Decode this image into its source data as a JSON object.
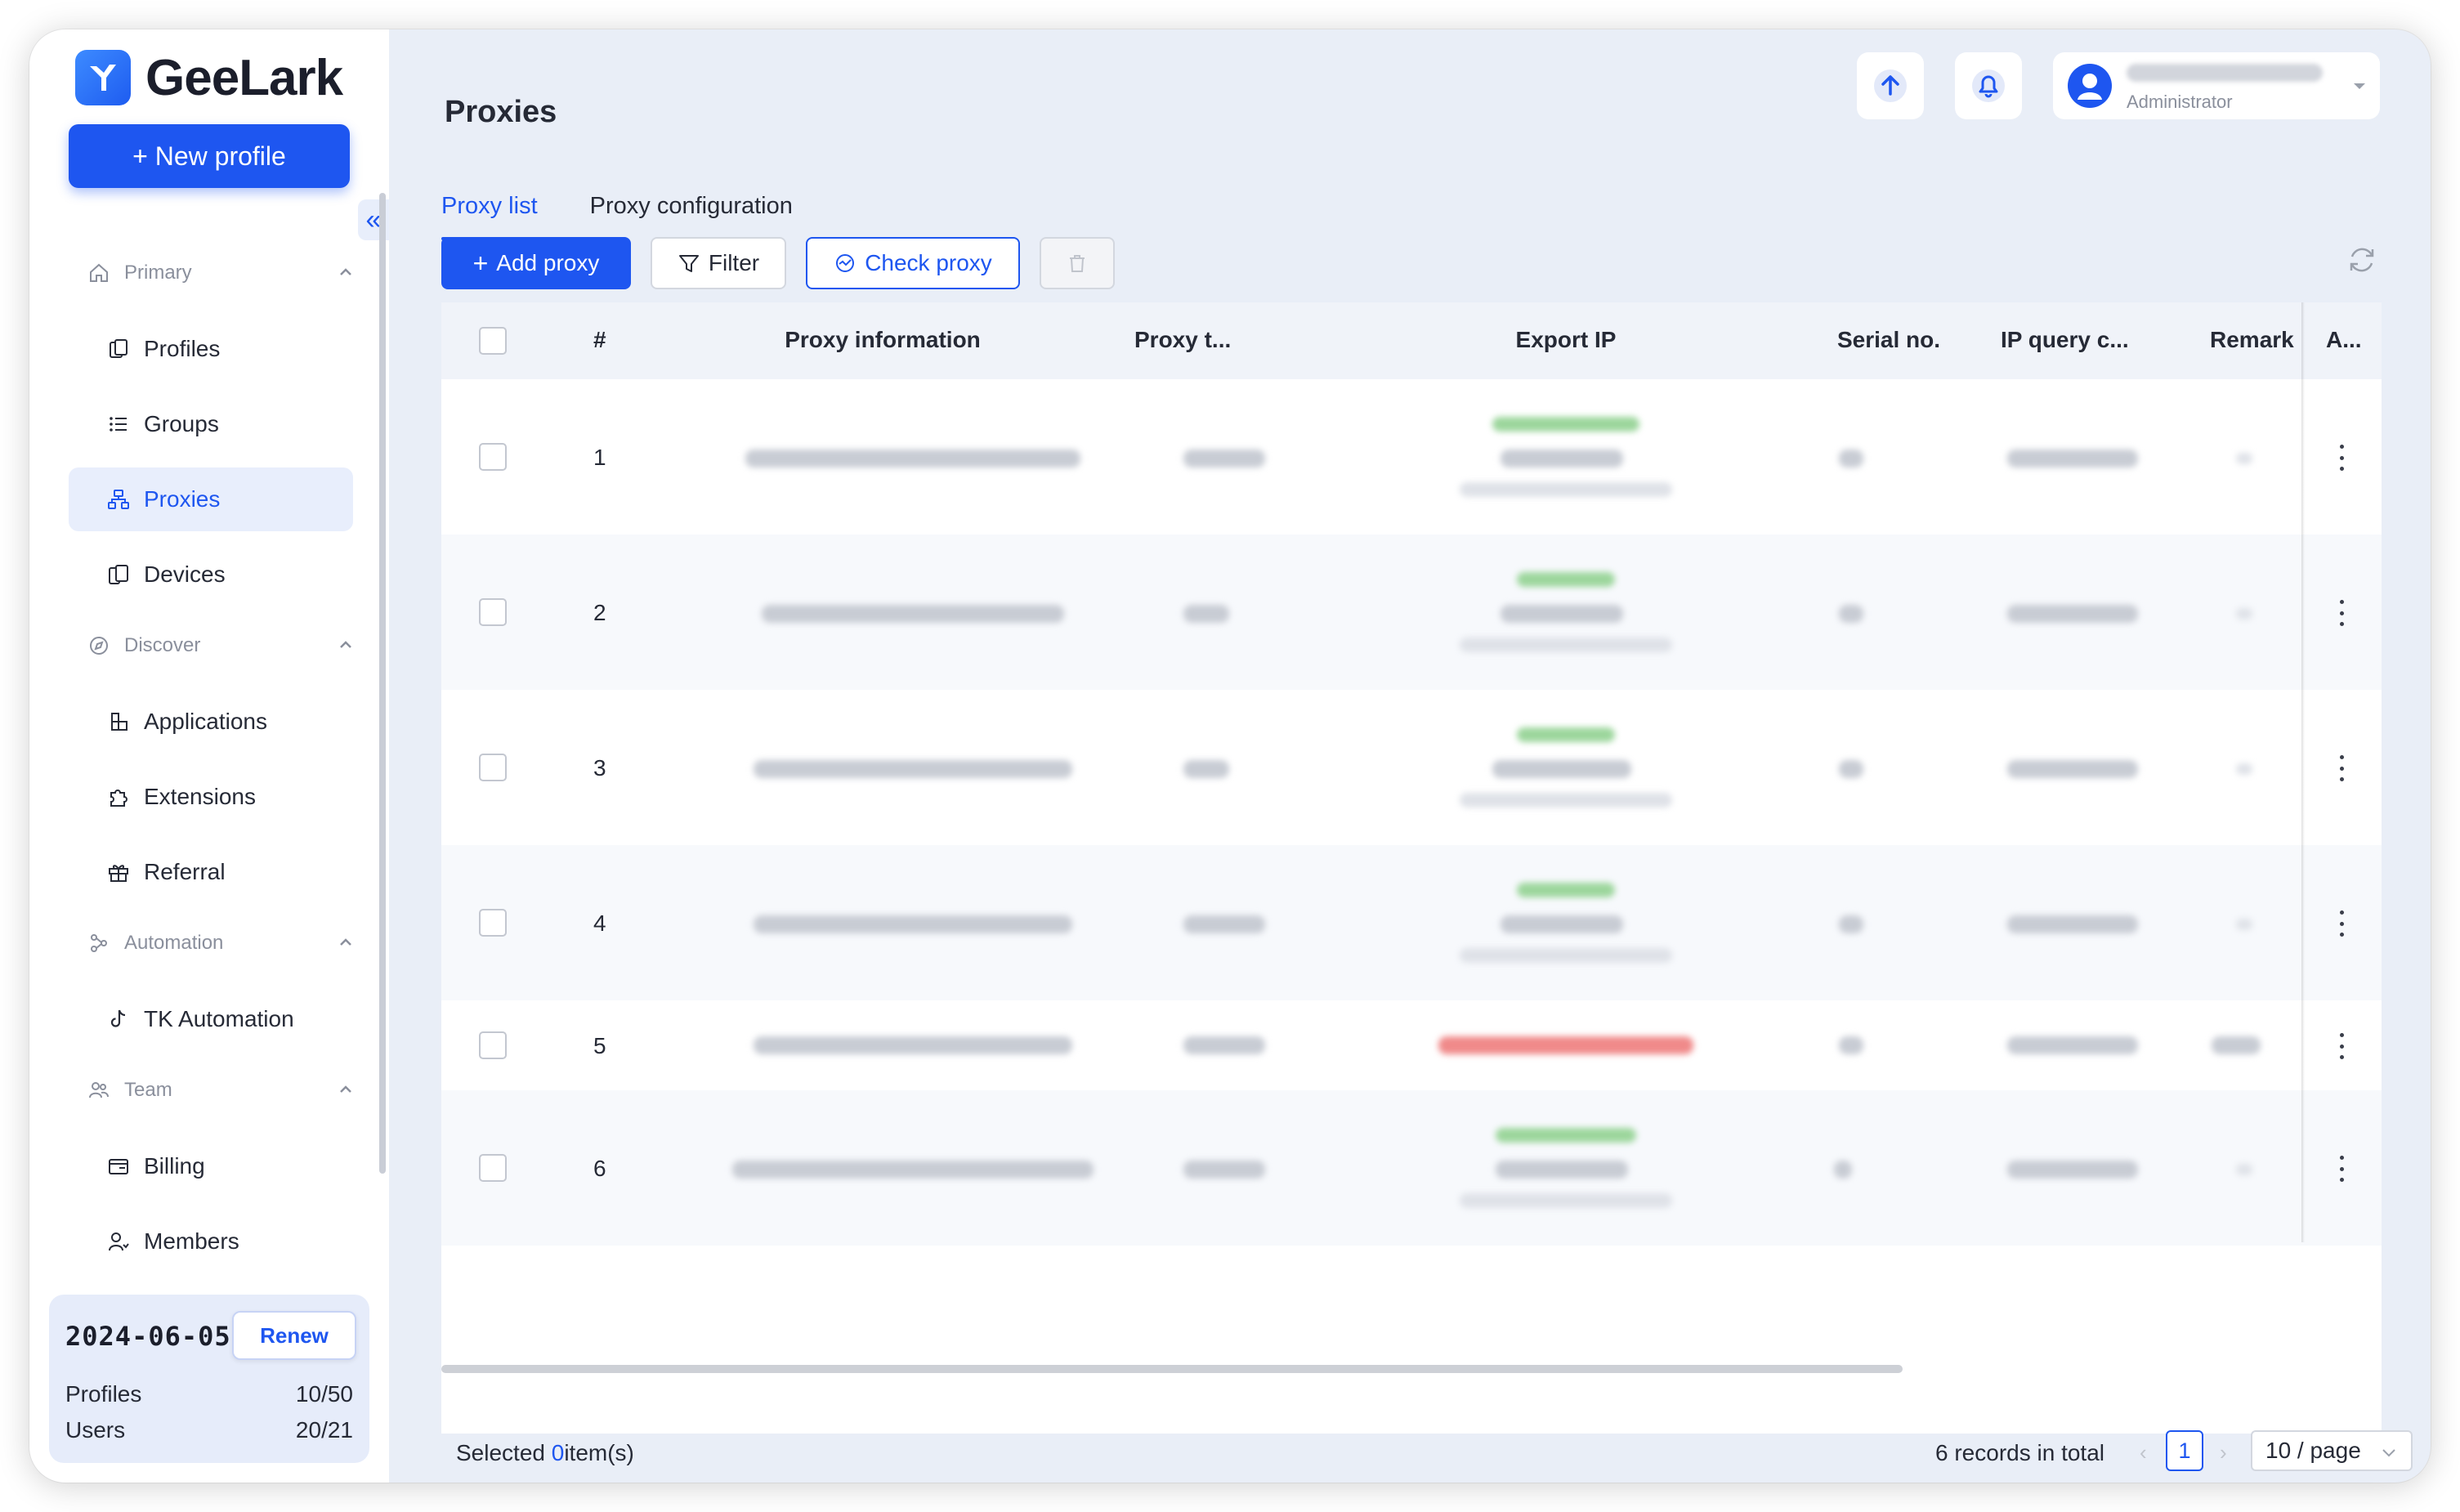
{
  "app": {
    "name": "GeeLark"
  },
  "sidebar": {
    "new_profile_label": "+ New profile",
    "sections": [
      {
        "label": "Primary",
        "items": [
          "Profiles",
          "Groups",
          "Proxies",
          "Devices"
        ]
      },
      {
        "label": "Discover",
        "items": [
          "Applications",
          "Extensions",
          "Referral"
        ]
      },
      {
        "label": "Automation",
        "items": [
          "TK Automation"
        ]
      },
      {
        "label": "Team",
        "items": [
          "Billing",
          "Members"
        ]
      }
    ],
    "active_item": "Proxies",
    "plan": {
      "expiry": "2024-06-05",
      "renew_label": "Renew",
      "profiles_label": "Profiles",
      "profiles_value": "10/50",
      "users_label": "Users",
      "users_value": "20/21"
    }
  },
  "header": {
    "title": "Proxies",
    "user_role": "Administrator"
  },
  "tabs": [
    {
      "label": "Proxy list",
      "active": true
    },
    {
      "label": "Proxy configuration",
      "active": false
    }
  ],
  "toolbar": {
    "add_proxy_label": "Add proxy",
    "filter_label": "Filter",
    "check_proxy_label": "Check proxy"
  },
  "table": {
    "columns": [
      "#",
      "Proxy information",
      "Proxy t...",
      "Export IP",
      "Serial no.",
      "IP query c...",
      "Remark",
      "A..."
    ],
    "rows": [
      {
        "index": "1",
        "export_status": "success"
      },
      {
        "index": "2",
        "export_status": "success"
      },
      {
        "index": "3",
        "export_status": "success"
      },
      {
        "index": "4",
        "export_status": "success"
      },
      {
        "index": "5",
        "export_status": "failed"
      },
      {
        "index": "6",
        "export_status": "success"
      }
    ]
  },
  "footer": {
    "selected_prefix": "Selected",
    "selected_count": "0",
    "selected_suffix": "item(s)",
    "records_total": "6 records in total",
    "current_page": "1",
    "page_size": "10 / page"
  },
  "colors": {
    "accent": "#1e56f0",
    "success": "#4caf50",
    "error": "#e53935"
  }
}
